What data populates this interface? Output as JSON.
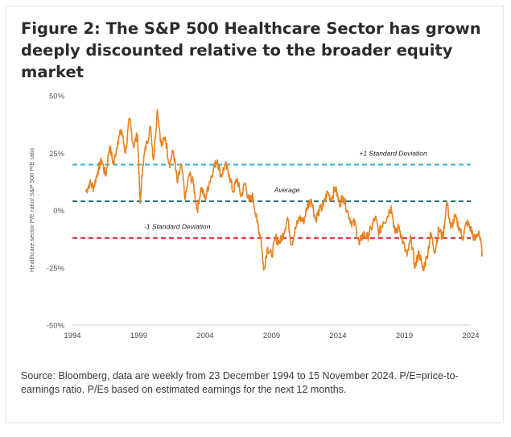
{
  "figure": {
    "title": "Figure 2: The S&P 500 Healthcare Sector has grown deeply discounted relative to the broader equity market",
    "source": "Source: Bloomberg, data are weekly from 23 December 1994 to 15 November 2024. P/E=price-to-earnings ratio. P/Es based on estimated earnings for the next 12 months."
  },
  "chart_data": {
    "type": "line",
    "title": "",
    "xlabel": "",
    "ylabel": "Healthcare sector P/E ratio/ S&P 500 P/E ratio",
    "xlim": [
      1994,
      2024
    ],
    "ylim": [
      -50,
      50
    ],
    "x_ticks": [
      1994,
      1999,
      2004,
      2009,
      2014,
      2019,
      2024
    ],
    "y_ticks": [
      {
        "value": 50,
        "label": "50%"
      },
      {
        "value": 25,
        "label": "25%"
      },
      {
        "value": 0,
        "label": "0%"
      },
      {
        "value": -25,
        "label": "-25%"
      },
      {
        "value": -50,
        "label": "-50%"
      }
    ],
    "grid": false,
    "legend": "none",
    "series": [
      {
        "color": "#e8821e",
        "x": [
          1995.0,
          1995.3,
          1995.6,
          1995.9,
          1996.2,
          1996.5,
          1996.8,
          1997.1,
          1997.4,
          1997.7,
          1998.0,
          1998.3,
          1998.6,
          1998.9,
          1999.1,
          1999.3,
          1999.6,
          1999.9,
          2000.1,
          2000.4,
          2000.7,
          2001.0,
          2001.3,
          2001.6,
          2001.9,
          2002.2,
          2002.5,
          2002.8,
          2003.1,
          2003.4,
          2003.7,
          2004.0,
          2004.3,
          2004.6,
          2004.9,
          2005.2,
          2005.5,
          2005.8,
          2006.1,
          2006.4,
          2006.7,
          2007.0,
          2007.3,
          2007.6,
          2007.9,
          2008.2,
          2008.4,
          2008.7,
          2009.0,
          2009.3,
          2009.6,
          2009.9,
          2010.2,
          2010.5,
          2010.8,
          2011.1,
          2011.4,
          2011.7,
          2012.0,
          2012.3,
          2012.6,
          2012.9,
          2013.2,
          2013.5,
          2013.8,
          2014.1,
          2014.4,
          2014.7,
          2015.0,
          2015.3,
          2015.6,
          2015.9,
          2016.2,
          2016.5,
          2016.8,
          2017.1,
          2017.4,
          2017.7,
          2018.0,
          2018.3,
          2018.6,
          2018.9,
          2019.2,
          2019.5,
          2019.8,
          2020.1,
          2020.4,
          2020.7,
          2021.0,
          2021.3,
          2021.6,
          2021.9,
          2022.2,
          2022.5,
          2022.8,
          2023.1,
          2023.4,
          2023.7,
          2024.0,
          2024.3,
          2024.6,
          2024.88
        ],
        "values": [
          8,
          12,
          10,
          17,
          22,
          15,
          28,
          20,
          30,
          35,
          25,
          40,
          28,
          33,
          3,
          20,
          30,
          36,
          22,
          44,
          28,
          32,
          20,
          26,
          12,
          20,
          5,
          16,
          12,
          0,
          10,
          5,
          12,
          18,
          22,
          15,
          20,
          16,
          8,
          14,
          6,
          12,
          4,
          6,
          -5,
          -12,
          -26,
          -16,
          -20,
          -12,
          -14,
          -10,
          -3,
          -15,
          -8,
          -3,
          -5,
          2,
          5,
          -4,
          0,
          2,
          8,
          5,
          10,
          3,
          6,
          0,
          -5,
          -6,
          -15,
          -10,
          -12,
          -8,
          -3,
          -10,
          -5,
          -3,
          2,
          -10,
          -7,
          -14,
          -20,
          -12,
          -25,
          -18,
          -26,
          -20,
          -10,
          -18,
          -8,
          -12,
          4,
          -8,
          -3,
          -7,
          -12,
          -5,
          -8,
          -13,
          -9,
          -19
        ]
      }
    ],
    "annotations": [
      {
        "label": "+1 Standard Deviation",
        "value": 20,
        "color": "#2fb8d6",
        "label_x": 2015.6
      },
      {
        "label": "Average",
        "value": 4,
        "color": "#1f6f7a",
        "label_x": 2009.2
      },
      {
        "label": "-1 Standard Deviation",
        "value": -12,
        "color": "#d61f26",
        "label_x": 1999.4
      }
    ]
  }
}
